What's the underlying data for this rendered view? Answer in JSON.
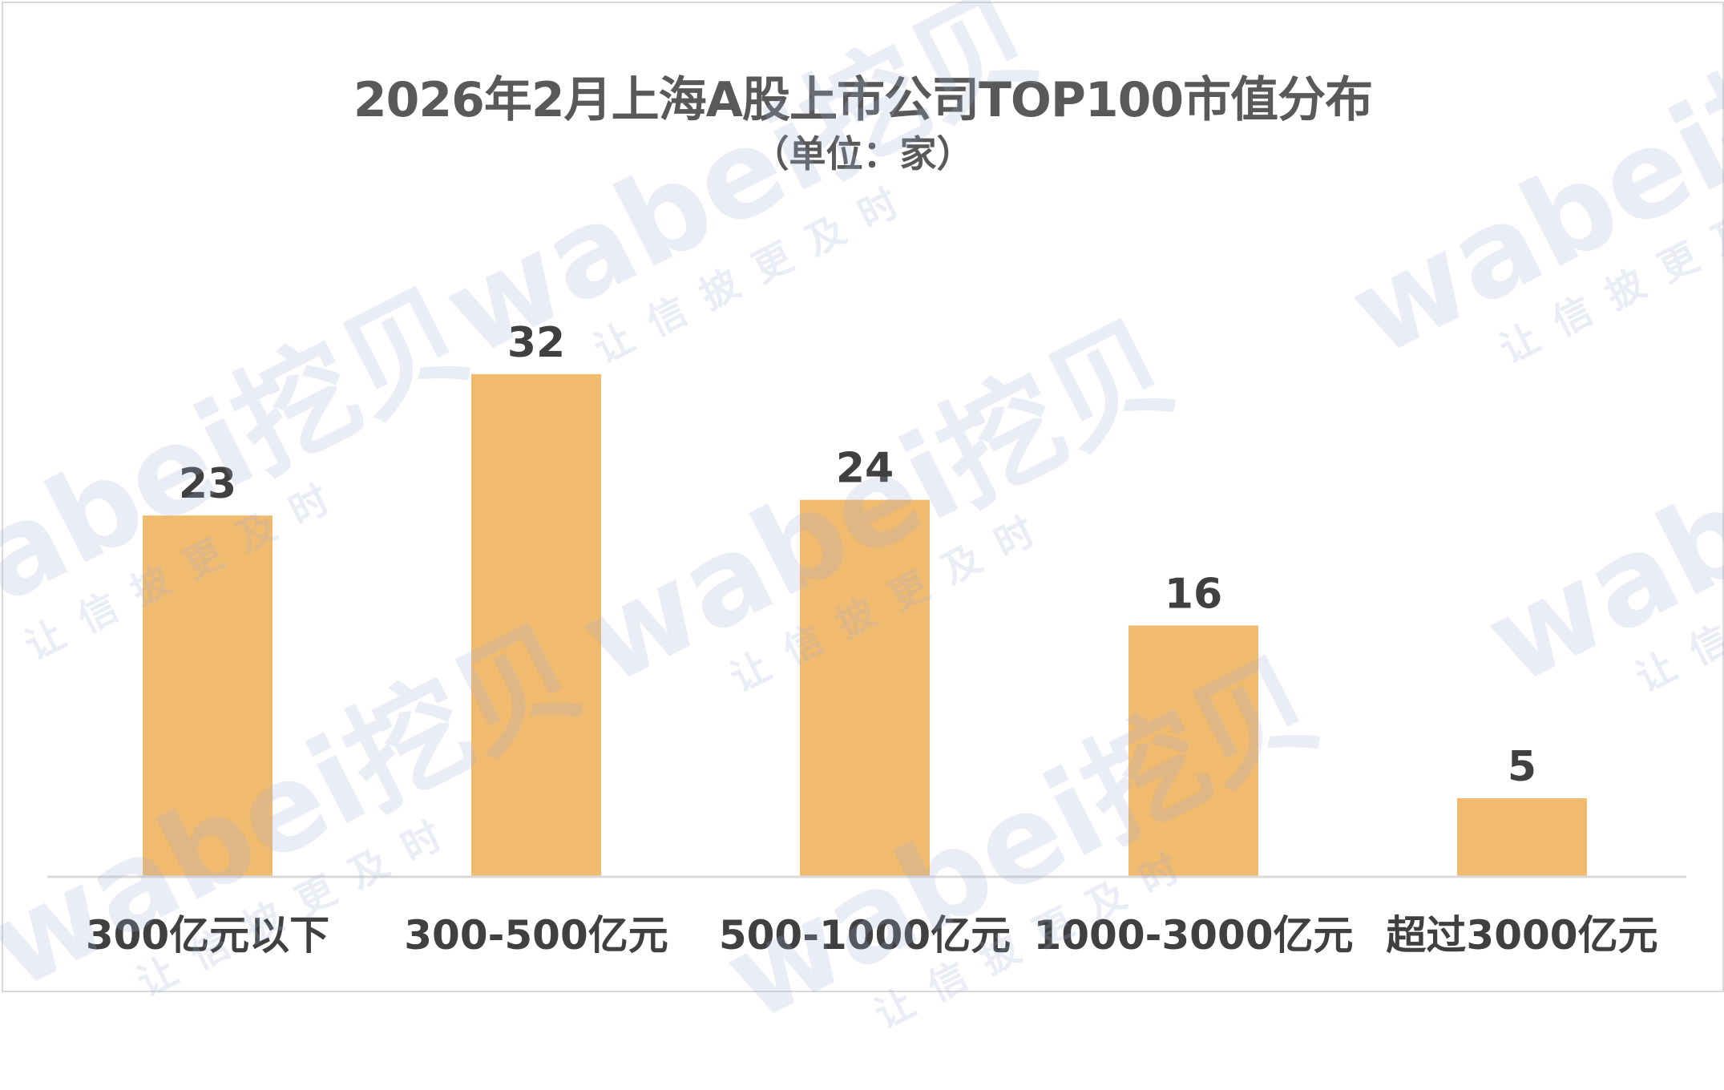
{
  "watermark": {
    "brand": "wabei挖贝",
    "slogan": "让信披更及时"
  },
  "chart_data": {
    "type": "bar",
    "title": "2026年2月上海A股上市公司TOP100市值分布",
    "subtitle": "（单位：家）",
    "categories": [
      "300亿元以下",
      "300-500亿元",
      "500-1000亿元",
      "1000-3000亿元",
      "超过3000亿元"
    ],
    "values": [
      23,
      32,
      24,
      16,
      5
    ],
    "ylim": [
      0,
      40
    ],
    "grid": false,
    "legend": "none",
    "bar_color": "#f0bb6f"
  }
}
